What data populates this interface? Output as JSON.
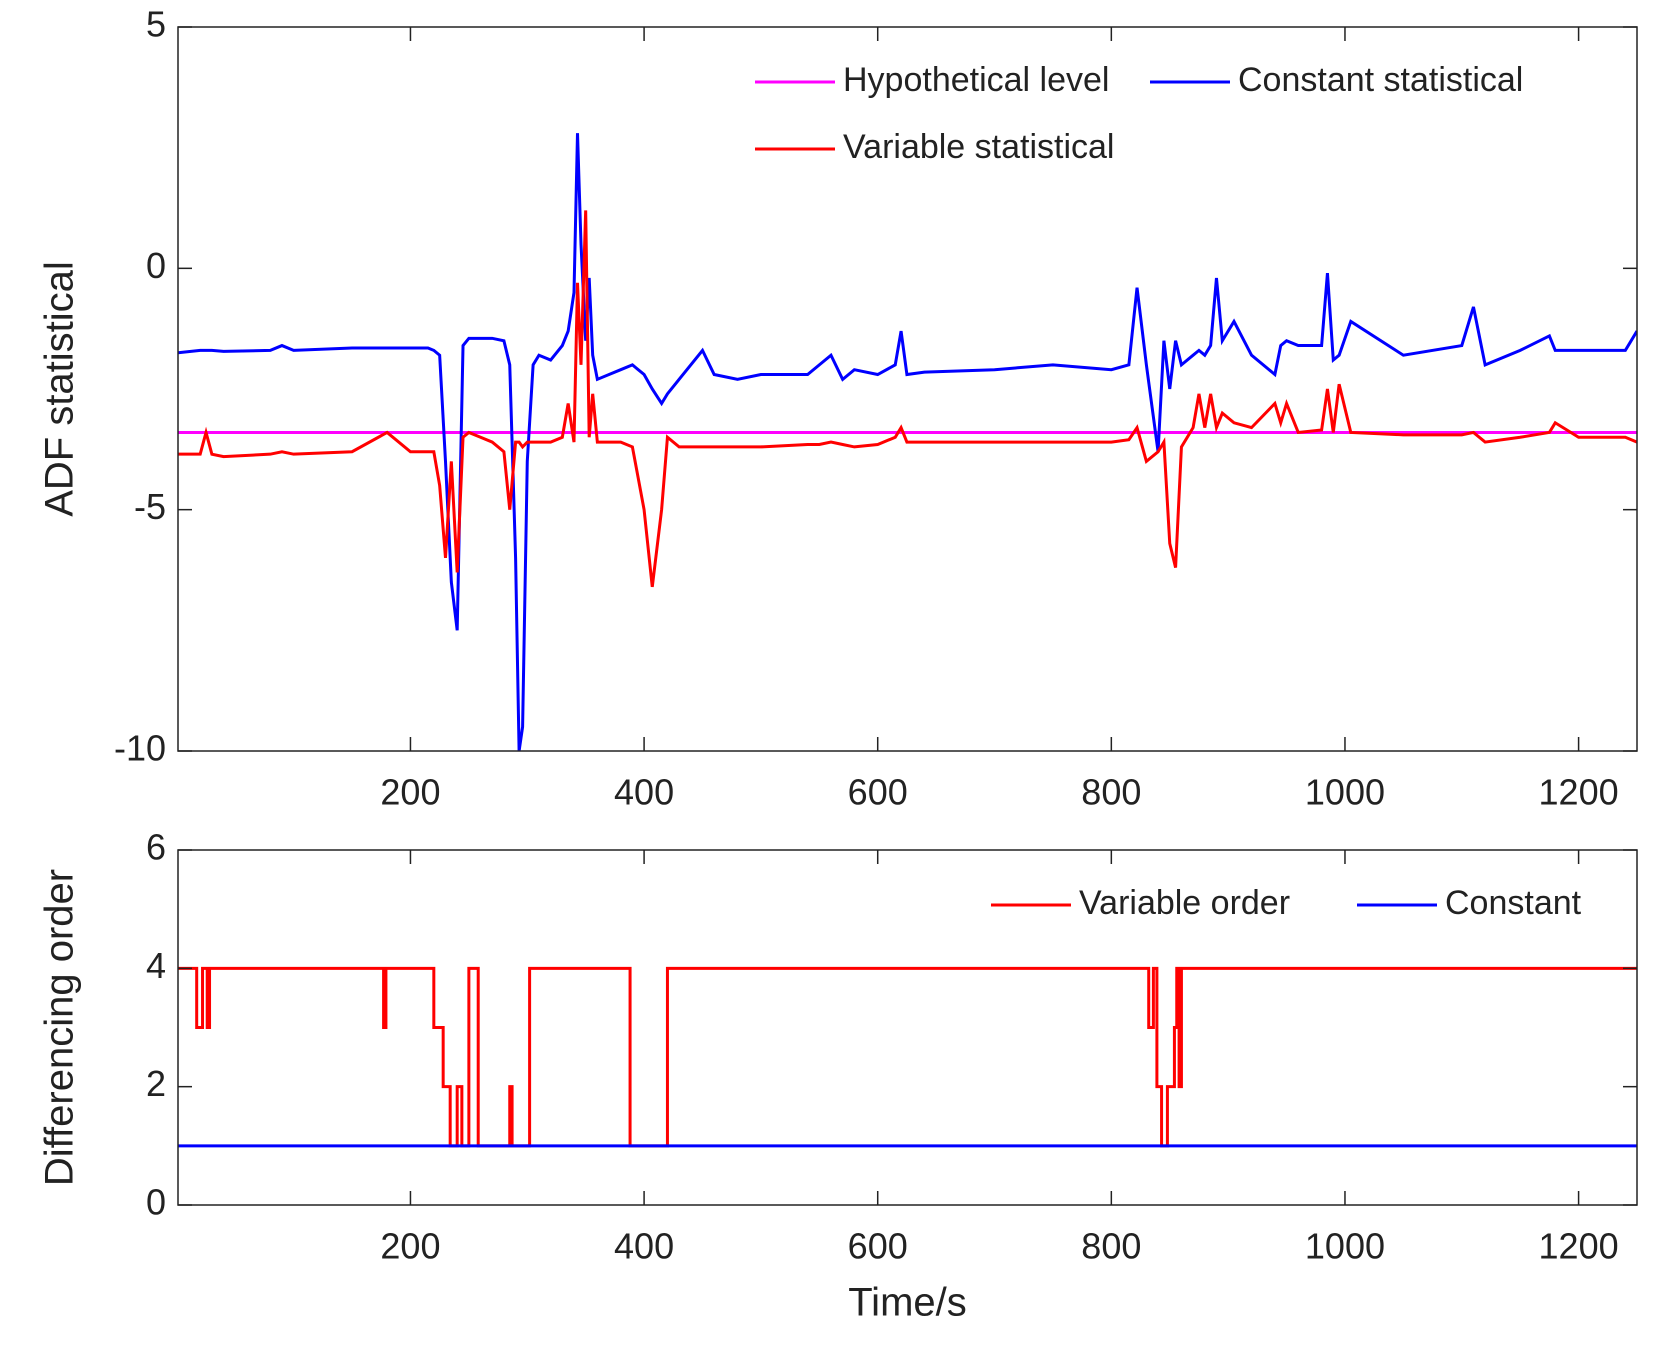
{
  "chart_data": [
    {
      "type": "line",
      "ylabel": "ADF statistical",
      "x": [
        1,
        20,
        25,
        30,
        40,
        80,
        90,
        100,
        150,
        180,
        200,
        215,
        220,
        225,
        230,
        235,
        240,
        245,
        250,
        260,
        270,
        280,
        285,
        290,
        293,
        296,
        300,
        305,
        310,
        320,
        330,
        335,
        340,
        343,
        346,
        350,
        353,
        356,
        360,
        370,
        380,
        390,
        400,
        407,
        415,
        420,
        430,
        450,
        460,
        480,
        500,
        540,
        550,
        560,
        570,
        580,
        600,
        615,
        620,
        625,
        640,
        700,
        750,
        800,
        815,
        822,
        830,
        840,
        845,
        850,
        855,
        860,
        870,
        875,
        880,
        885,
        890,
        895,
        905,
        920,
        940,
        945,
        950,
        960,
        980,
        985,
        990,
        995,
        1005,
        1050,
        1100,
        1110,
        1120,
        1150,
        1175,
        1180,
        1200,
        1240,
        1250
      ],
      "series": [
        {
          "name": "Hypothetical level",
          "color": "#ff00ff",
          "values": [
            -3.4,
            -3.4,
            -3.4,
            -3.4,
            -3.4,
            -3.4,
            -3.4,
            -3.4,
            -3.4,
            -3.4,
            -3.4,
            -3.4,
            -3.4,
            -3.4,
            -3.4,
            -3.4,
            -3.4,
            -3.4,
            -3.4,
            -3.4,
            -3.4,
            -3.4,
            -3.4,
            -3.4,
            -3.4,
            -3.4,
            -3.4,
            -3.4,
            -3.4,
            -3.4,
            -3.4,
            -3.4,
            -3.4,
            -3.4,
            -3.4,
            -3.4,
            -3.4,
            -3.4,
            -3.4,
            -3.4,
            -3.4,
            -3.4,
            -3.4,
            -3.4,
            -3.4,
            -3.4,
            -3.4,
            -3.4,
            -3.4,
            -3.4,
            -3.4,
            -3.4,
            -3.4,
            -3.4,
            -3.4,
            -3.4,
            -3.4,
            -3.4,
            -3.4,
            -3.4,
            -3.4,
            -3.4,
            -3.4,
            -3.4,
            -3.4,
            -3.4,
            -3.4,
            -3.4,
            -3.4,
            -3.4,
            -3.4,
            -3.4,
            -3.4,
            -3.4,
            -3.4,
            -3.4,
            -3.4,
            -3.4,
            -3.4,
            -3.4,
            -3.4,
            -3.4,
            -3.4,
            -3.4,
            -3.4,
            -3.4,
            -3.4,
            -3.4,
            -3.4,
            -3.4,
            -3.4,
            -3.4,
            -3.4,
            -3.4,
            -3.4,
            -3.4,
            -3.4,
            -3.4,
            -3.4
          ]
        },
        {
          "name": "Constant statistical",
          "color": "#0000ff",
          "values": [
            -1.75,
            -1.7,
            -1.7,
            -1.7,
            -1.72,
            -1.7,
            -1.6,
            -1.7,
            -1.65,
            -1.65,
            -1.65,
            -1.65,
            -1.7,
            -1.8,
            -4.0,
            -6.5,
            -7.5,
            -1.6,
            -1.45,
            -1.45,
            -1.45,
            -1.5,
            -2.0,
            -6.0,
            -10,
            -9.5,
            -4.0,
            -2.0,
            -1.8,
            -1.9,
            -1.6,
            -1.3,
            -0.5,
            2.8,
            0.5,
            -1.5,
            -0.2,
            -1.8,
            -2.3,
            -2.2,
            -2.1,
            -2.0,
            -2.2,
            -2.5,
            -2.8,
            -2.6,
            -2.3,
            -1.7,
            -2.2,
            -2.3,
            -2.2,
            -2.2,
            -2.0,
            -1.8,
            -2.3,
            -2.1,
            -2.2,
            -2.0,
            -1.3,
            -2.2,
            -2.15,
            -2.1,
            -2.0,
            -2.1,
            -2.0,
            -0.4,
            -2.0,
            -3.8,
            -1.5,
            -2.5,
            -1.5,
            -2.0,
            -1.8,
            -1.7,
            -1.8,
            -1.6,
            -0.2,
            -1.5,
            -1.1,
            -1.8,
            -2.2,
            -1.6,
            -1.5,
            -1.6,
            -1.6,
            -0.1,
            -1.9,
            -1.8,
            -1.1,
            -1.8,
            -1.6,
            -0.8,
            -2.0,
            -1.7,
            -1.4,
            -1.7,
            -1.7,
            -1.7,
            -1.3
          ]
        },
        {
          "name": "Variable statistical",
          "color": "#ff0000",
          "values": [
            -3.85,
            -3.85,
            -3.4,
            -3.85,
            -3.9,
            -3.85,
            -3.8,
            -3.85,
            -3.8,
            -3.4,
            -3.8,
            -3.8,
            -3.8,
            -4.5,
            -6.0,
            -4.0,
            -6.3,
            -3.5,
            -3.4,
            -3.5,
            -3.6,
            -3.8,
            -5.0,
            -3.6,
            -3.6,
            -3.7,
            -3.6,
            -3.6,
            -3.6,
            -3.6,
            -3.5,
            -2.8,
            -3.6,
            -0.3,
            -2.0,
            1.2,
            -3.5,
            -2.6,
            -3.6,
            -3.6,
            -3.6,
            -3.7,
            -5.0,
            -6.6,
            -5.0,
            -3.5,
            -3.7,
            -3.7,
            -3.7,
            -3.7,
            -3.7,
            -3.65,
            -3.65,
            -3.6,
            -3.65,
            -3.7,
            -3.65,
            -3.5,
            -3.3,
            -3.6,
            -3.6,
            -3.6,
            -3.6,
            -3.6,
            -3.55,
            -3.3,
            -4.0,
            -3.8,
            -3.6,
            -5.7,
            -6.2,
            -3.7,
            -3.3,
            -2.6,
            -3.3,
            -2.6,
            -3.3,
            -3.0,
            -3.2,
            -3.3,
            -2.8,
            -3.2,
            -2.8,
            -3.4,
            -3.35,
            -2.5,
            -3.4,
            -2.4,
            -3.4,
            -3.45,
            -3.45,
            -3.4,
            -3.6,
            -3.5,
            -3.4,
            -3.2,
            -3.5,
            -3.5,
            -3.6
          ]
        }
      ],
      "xlim": [
        1,
        1250
      ],
      "xticks": [
        200,
        400,
        600,
        800,
        1000,
        1200
      ],
      "ylim": [
        -10,
        5
      ],
      "yticks": [
        -10,
        -5,
        0,
        5
      ],
      "legend": "upper right",
      "legend_columns": 2
    },
    {
      "type": "line",
      "ylabel": "Differencing order",
      "xlabel": "Time/s",
      "drawstyle": "steps-post",
      "x": [
        1,
        17,
        22,
        26,
        28,
        177,
        179,
        220,
        228,
        234,
        240,
        244,
        250,
        258,
        285,
        287,
        302,
        388,
        420,
        832,
        836,
        839,
        843,
        848,
        854,
        856,
        858,
        860,
        1250
      ],
      "series": [
        {
          "name": "Variable order",
          "color": "#ff0000",
          "values": [
            4,
            3,
            4,
            3,
            4,
            3,
            4,
            3,
            2,
            1,
            2,
            1,
            4,
            1,
            2,
            1,
            4,
            1,
            4,
            3,
            4,
            2,
            1,
            2,
            3,
            4,
            2,
            4,
            4
          ]
        },
        {
          "name": "Constant",
          "color": "#0000ff",
          "values": [
            1,
            1,
            1,
            1,
            1,
            1,
            1,
            1,
            1,
            1,
            1,
            1,
            1,
            1,
            1,
            1,
            1,
            1,
            1,
            1,
            1,
            1,
            1,
            1,
            1,
            1,
            1,
            1,
            1
          ]
        }
      ],
      "xlim": [
        1,
        1250
      ],
      "xticks": [
        200,
        400,
        600,
        800,
        1000,
        1200
      ],
      "ylim": [
        0,
        6
      ],
      "yticks": [
        0,
        2,
        4,
        6
      ],
      "legend": "upper right",
      "legend_columns": 2
    }
  ]
}
